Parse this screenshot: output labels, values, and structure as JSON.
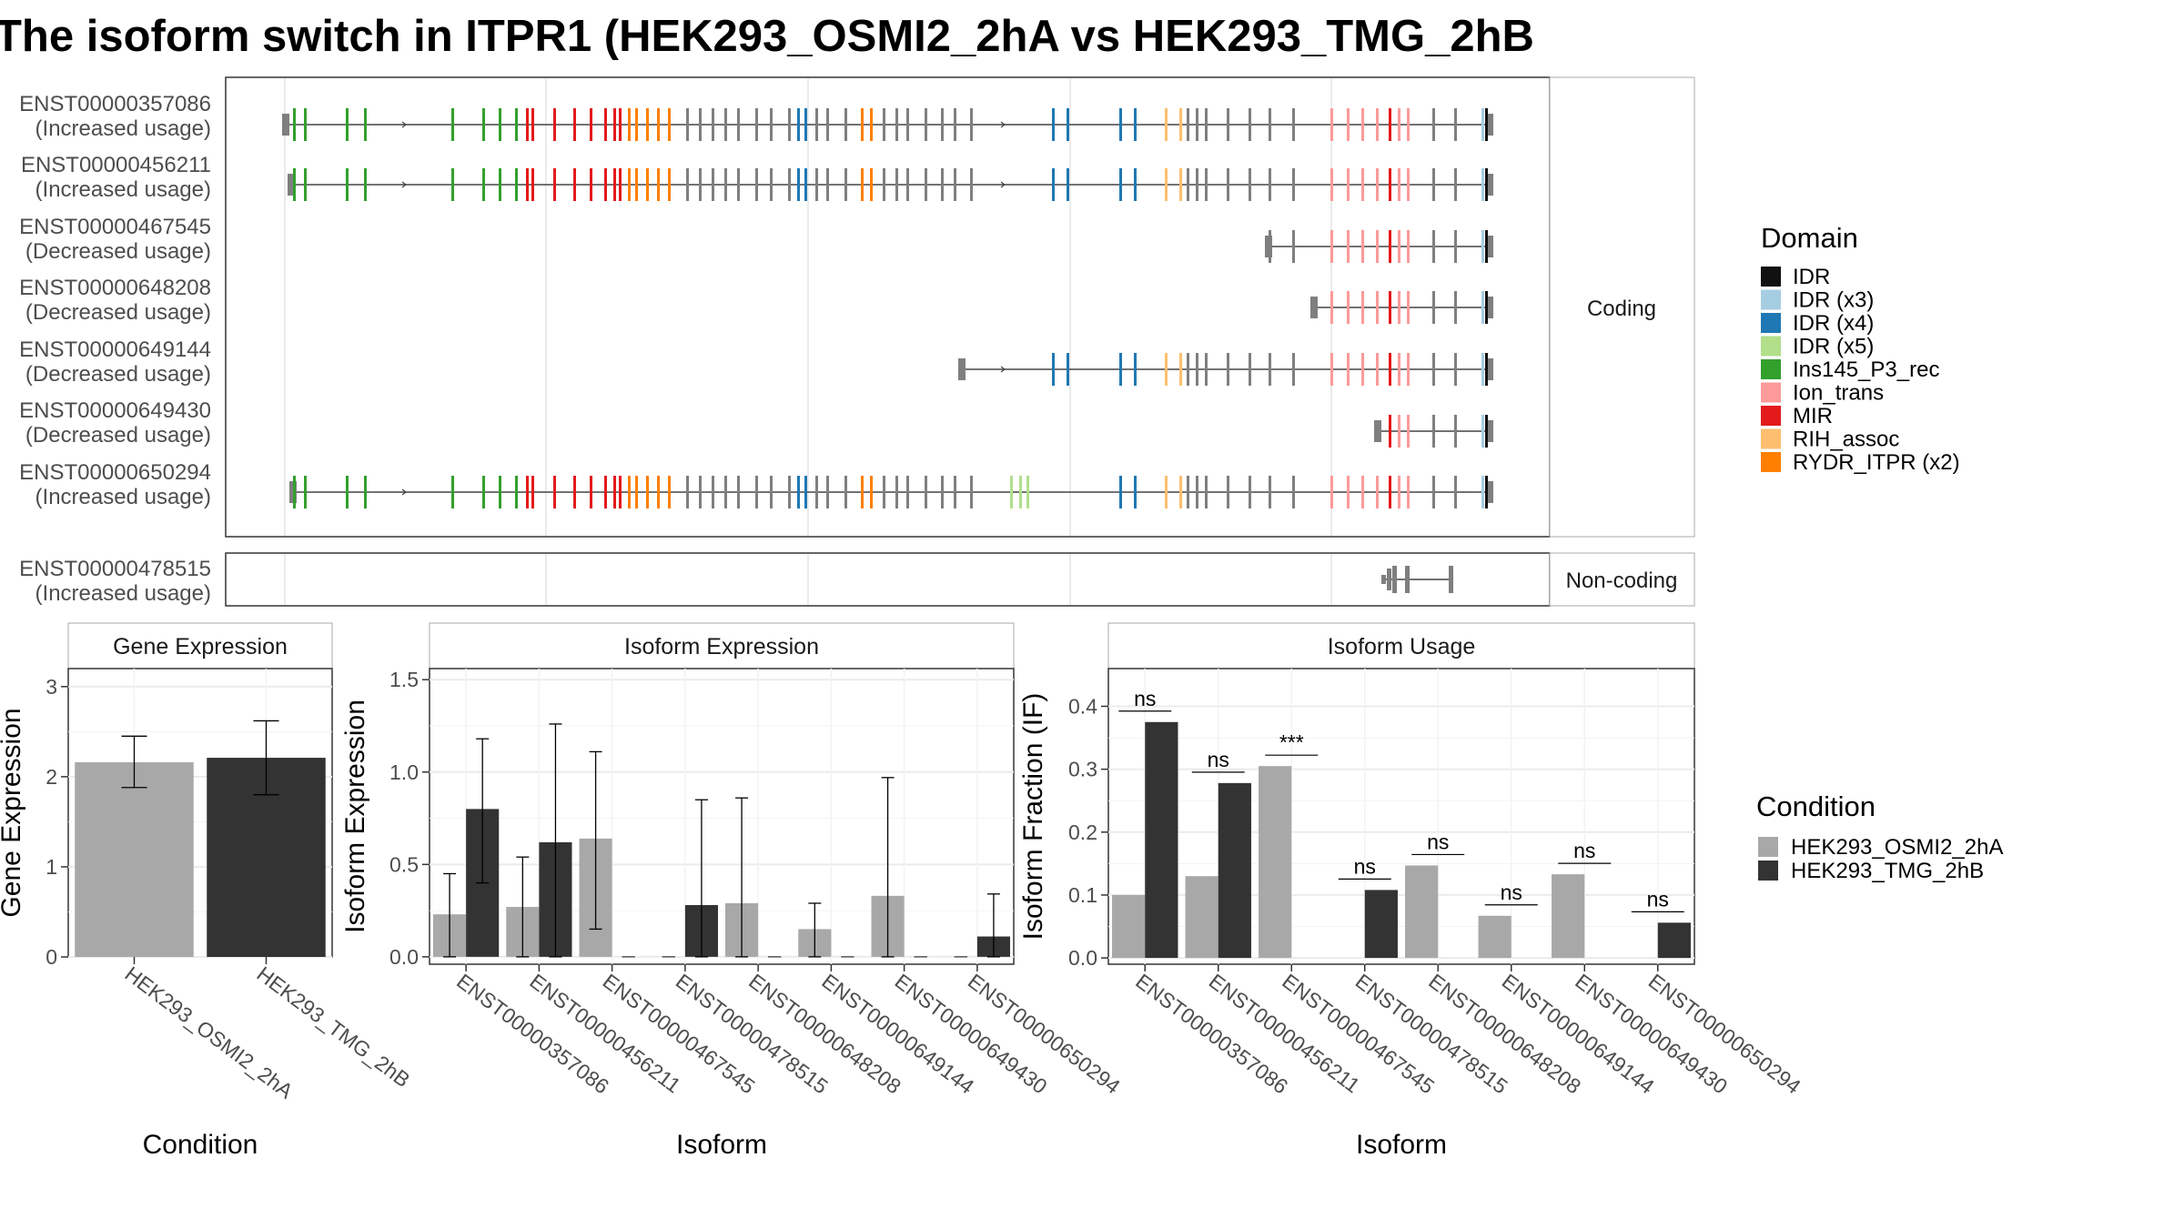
{
  "title": "The isoform switch in ITPR1 (HEK293_OSMI2_2hA vs HEK293_TMG_2hB",
  "structure": {
    "coding_label": "Coding",
    "noncoding_label": "Non-coding",
    "coding_isoforms": [
      {
        "id": "ENST00000357086",
        "usage": "(Increased usage)"
      },
      {
        "id": "ENST00000456211",
        "usage": "(Increased usage)"
      },
      {
        "id": "ENST00000467545",
        "usage": "(Decreased usage)"
      },
      {
        "id": "ENST00000648208",
        "usage": "(Decreased usage)"
      },
      {
        "id": "ENST00000649144",
        "usage": "(Decreased usage)"
      },
      {
        "id": "ENST00000649430",
        "usage": "(Decreased usage)"
      },
      {
        "id": "ENST00000650294",
        "usage": "(Increased usage)"
      }
    ],
    "noncoding_isoforms": [
      {
        "id": "ENST00000478515",
        "usage": "(Increased usage)"
      }
    ]
  },
  "legend_domain": {
    "title": "Domain",
    "items": [
      {
        "label": "IDR",
        "color": "#111111"
      },
      {
        "label": "IDR (x3)",
        "color": "#a6cee3"
      },
      {
        "label": "IDR (x4)",
        "color": "#1f78b4"
      },
      {
        "label": "IDR (x5)",
        "color": "#b2df8a"
      },
      {
        "label": "Ins145_P3_rec",
        "color": "#33a02c"
      },
      {
        "label": "Ion_trans",
        "color": "#fb9a99"
      },
      {
        "label": "MIR",
        "color": "#e31a1c"
      },
      {
        "label": "RIH_assoc",
        "color": "#fdbf6f"
      },
      {
        "label": "RYDR_ITPR (x2)",
        "color": "#ff7f00"
      }
    ]
  },
  "legend_condition": {
    "title": "Condition",
    "items": [
      {
        "label": "HEK293_OSMI2_2hA",
        "color": "#a8a8a8"
      },
      {
        "label": "HEK293_TMG_2hB",
        "color": "#333333"
      }
    ]
  },
  "chart_data": [
    {
      "type": "bar",
      "title": "Gene Expression",
      "xlabel": "Condition",
      "ylabel": "Gene Expression",
      "ylim": [
        0,
        3.2
      ],
      "yticks": [
        "0",
        "1",
        "2",
        "3"
      ],
      "categories": [
        "HEK293_OSMI2_2hA",
        "HEK293_TMG_2hB"
      ],
      "values": [
        2.16,
        2.21
      ],
      "err_low": [
        1.88,
        1.8
      ],
      "err_high": [
        2.45,
        2.62
      ],
      "colors": [
        "#a8a8a8",
        "#333333"
      ]
    },
    {
      "type": "bar",
      "title": "Isoform Expression",
      "xlabel": "Isoform",
      "ylabel": "Isoform Expression",
      "ylim": [
        -0.04,
        1.56
      ],
      "yticks": [
        "0.0",
        "0.5",
        "1.0",
        "1.5"
      ],
      "categories": [
        "ENST00000357086",
        "ENST00000456211",
        "ENST00000467545",
        "ENST00000478515",
        "ENST00000648208",
        "ENST00000649144",
        "ENST00000649430",
        "ENST00000650294"
      ],
      "series": [
        {
          "name": "HEK293_OSMI2_2hA",
          "values": [
            0.23,
            0.27,
            0.64,
            0.0,
            0.29,
            0.15,
            0.33,
            0.0
          ],
          "err_low": [
            0.0,
            0.0,
            0.15,
            0.0,
            0.0,
            0.0,
            0.0,
            0.0
          ],
          "err_high": [
            0.45,
            0.54,
            1.11,
            0.0,
            0.86,
            0.29,
            0.97,
            0.0
          ]
        },
        {
          "name": "HEK293_TMG_2hB",
          "values": [
            0.8,
            0.62,
            0.0,
            0.28,
            0.0,
            0.0,
            0.0,
            0.11
          ],
          "err_low": [
            0.4,
            0.0,
            0.0,
            0.0,
            0.0,
            0.0,
            0.0,
            0.0
          ],
          "err_high": [
            1.18,
            1.26,
            0.0,
            0.85,
            0.0,
            0.0,
            0.0,
            0.34
          ]
        }
      ]
    },
    {
      "type": "bar",
      "title": "Isoform Usage",
      "xlabel": "Isoform",
      "ylabel": "Isoform Fraction (IF)",
      "ylim": [
        -0.01,
        0.46
      ],
      "yticks": [
        "0.0",
        "0.1",
        "0.2",
        "0.3",
        "0.4"
      ],
      "categories": [
        "ENST00000357086",
        "ENST00000456211",
        "ENST00000467545",
        "ENST00000478515",
        "ENST00000648208",
        "ENST00000649144",
        "ENST00000649430",
        "ENST00000650294"
      ],
      "series": [
        {
          "name": "HEK293_OSMI2_2hA",
          "values": [
            0.1,
            0.13,
            0.305,
            0.0,
            0.147,
            0.067,
            0.133,
            0.0
          ]
        },
        {
          "name": "HEK293_TMG_2hB",
          "values": [
            0.375,
            0.278,
            0.0,
            0.108,
            0.0,
            0.0,
            0.0,
            0.056
          ]
        }
      ],
      "significance": [
        "ns",
        "ns",
        "***",
        "ns",
        "ns",
        "ns",
        "ns",
        "ns"
      ]
    }
  ]
}
